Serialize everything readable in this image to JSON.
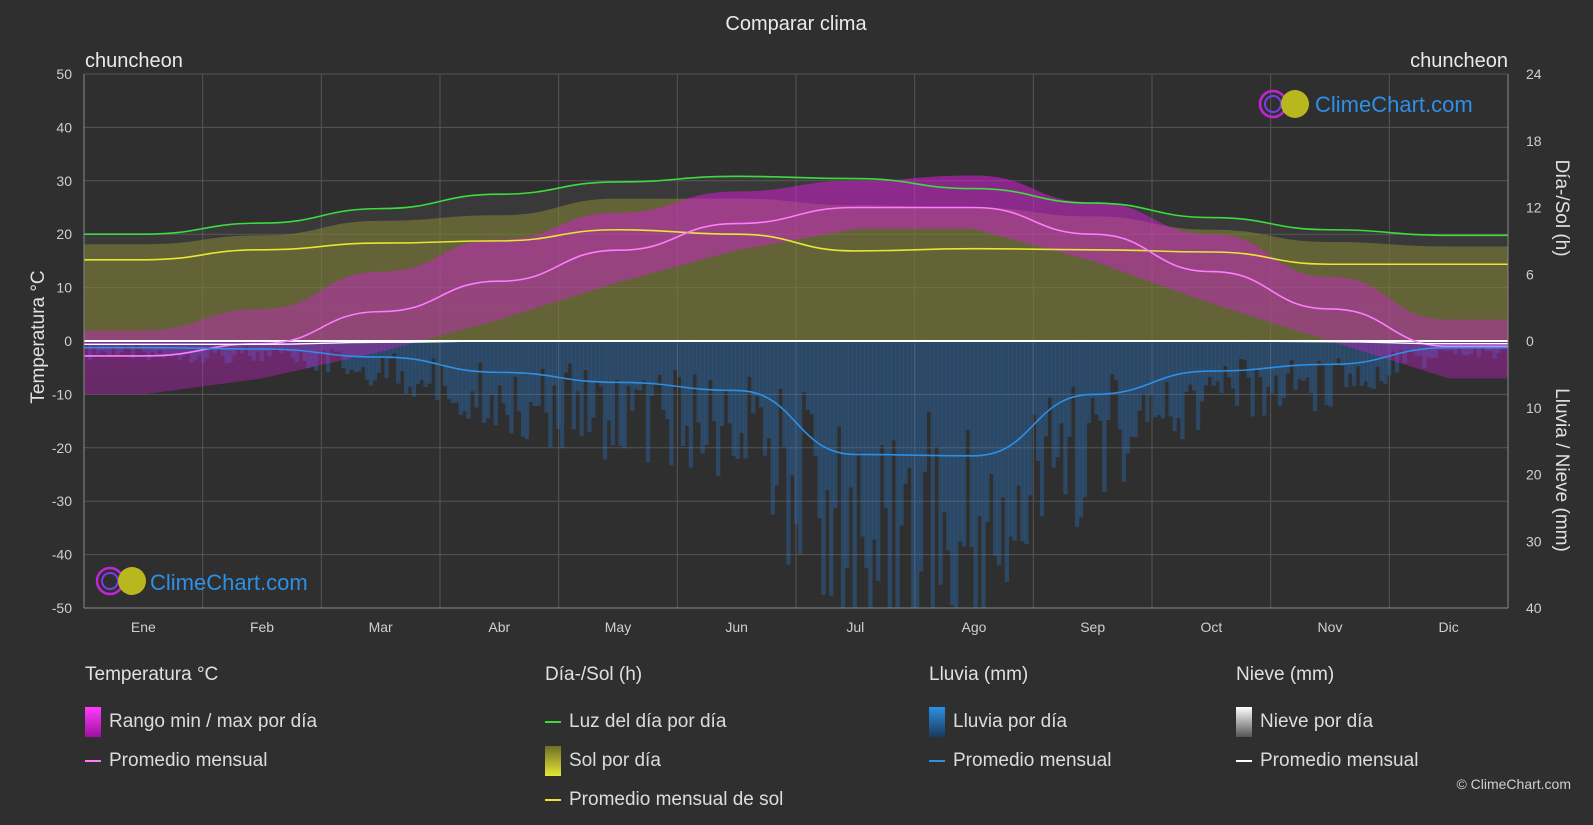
{
  "title": "Comparar clima",
  "location_left": "chuncheon",
  "location_right": "chuncheon",
  "watermark": "ClimeChart.com",
  "copyright": "© ClimeChart.com",
  "chart_data": {
    "type": "line",
    "months": [
      "Ene",
      "Feb",
      "Mar",
      "Abr",
      "May",
      "Jun",
      "Jul",
      "Ago",
      "Sep",
      "Oct",
      "Nov",
      "Dic"
    ],
    "y_left": {
      "label": "Temperatura °C",
      "ticks": [
        50,
        40,
        30,
        20,
        10,
        0,
        -10,
        -20,
        -30,
        -40,
        -50
      ],
      "range": [
        -50,
        50
      ]
    },
    "y_right_top": {
      "label": "Día-/Sol (h)",
      "ticks": [
        24,
        18,
        12,
        6,
        0
      ],
      "range": [
        0,
        24
      ]
    },
    "y_right_bottom": {
      "label": "Lluvia / Nieve (mm)",
      "ticks": [
        0,
        10,
        20,
        30,
        40
      ],
      "range": [
        0,
        40
      ]
    },
    "grid": true,
    "series": {
      "daylight_hours": [
        9.6,
        10.6,
        11.9,
        13.2,
        14.3,
        14.8,
        14.6,
        13.7,
        12.4,
        11.1,
        10.0,
        9.5
      ],
      "sunshine_hours_daily_band": [
        8.7,
        9.5,
        10.8,
        11.3,
        12.8,
        12.8,
        12.2,
        12.0,
        11.2,
        10.0,
        8.9,
        8.5
      ],
      "sunshine_hours_monthly_avg": [
        7.3,
        8.2,
        8.8,
        9.0,
        10.0,
        9.6,
        8.1,
        8.3,
        8.2,
        8.0,
        6.9,
        6.9
      ],
      "temp_monthly_avg": [
        -2.8,
        -0.5,
        5.5,
        11.2,
        17.0,
        22.0,
        25.0,
        25.0,
        20.0,
        13.0,
        6.0,
        -1.0
      ],
      "temp_max_daily": [
        2,
        6,
        13,
        19,
        24,
        28,
        30,
        31,
        26,
        20,
        12,
        4
      ],
      "temp_min_daily": [
        -10,
        -7,
        -2,
        4,
        11,
        17,
        21,
        21,
        15,
        7,
        0,
        -7
      ],
      "rain_monthly_avg_mm": [
        1.0,
        1.2,
        2.4,
        4.7,
        6.2,
        7.4,
        17.0,
        17.2,
        8.0,
        4.5,
        3.5,
        1.0
      ],
      "snow_monthly_avg_mm": [
        0.5,
        0.5,
        0.2,
        0,
        0,
        0,
        0,
        0,
        0,
        0,
        0.1,
        0.4
      ]
    }
  },
  "legend": {
    "temperature": {
      "title": "Temperatura °C",
      "items": [
        "Rango min / max por día",
        "Promedio mensual"
      ]
    },
    "sun": {
      "title": "Día-/Sol (h)",
      "items": [
        "Luz del día por día",
        "Sol por día",
        "Promedio mensual de sol"
      ]
    },
    "rain": {
      "title": "Lluvia (mm)",
      "items": [
        "Lluvia por día",
        "Promedio mensual"
      ]
    },
    "snow": {
      "title": "Nieve (mm)",
      "items": [
        "Nieve por día",
        "Promedio mensual"
      ]
    }
  },
  "colors": {
    "background": "#2f2f2f",
    "daylight": "#3ddc3d",
    "sunshine_avg": "#e6e633",
    "sunshine_band": "#8c8c2a",
    "temp_range": "#d21ed2",
    "temp_avg": "#ff7bff",
    "rain": "#2a78c8",
    "rain_avg": "#2d8fe6",
    "snow": "#aaaaaa",
    "snow_avg": "#ffffff"
  }
}
